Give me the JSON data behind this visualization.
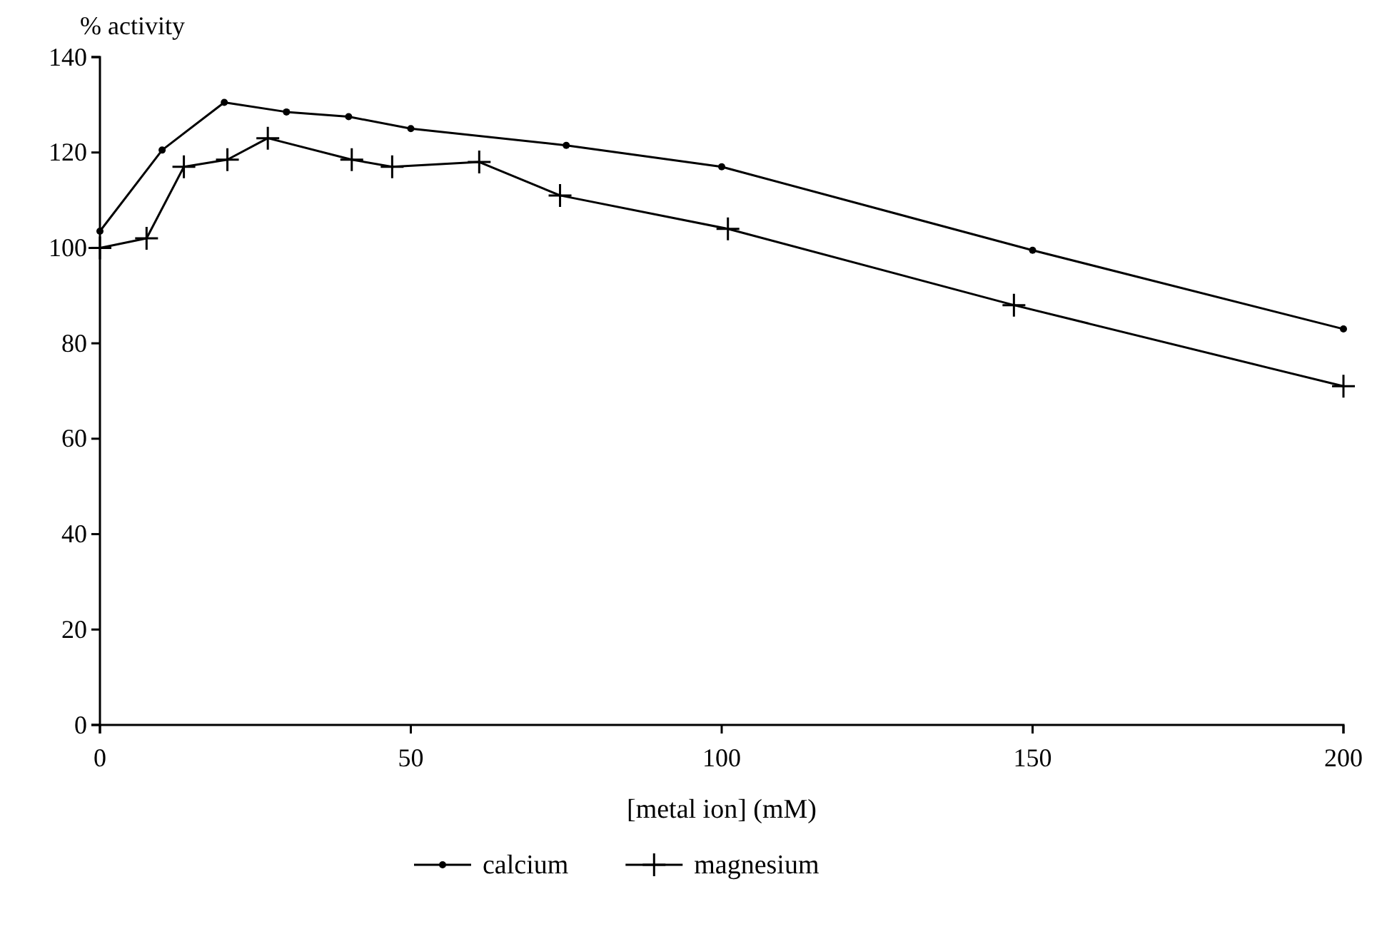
{
  "chart_data": {
    "type": "line",
    "xlabel": "[metal ion] (mM)",
    "ylabel": "% activity",
    "xlim": [
      0,
      200
    ],
    "xticks": [
      0,
      50,
      100,
      150,
      200
    ],
    "ylim": [
      0,
      140
    ],
    "yticks": [
      0,
      20,
      40,
      60,
      80,
      100,
      120,
      140
    ],
    "grid": false,
    "legend": "bottom",
    "line_style": "solid",
    "series": [
      {
        "name": "calcium",
        "color": "#000000",
        "marker": "circle",
        "x": [
          0,
          10,
          20,
          30,
          40,
          50,
          75,
          100,
          150,
          200
        ],
        "values": [
          103.5,
          120.5,
          130.5,
          128.5,
          127.5,
          125,
          121.5,
          117,
          99.5,
          83
        ]
      },
      {
        "name": "magnesium",
        "color": "#000000",
        "marker": "cross",
        "x": [
          0,
          7.5,
          13.5,
          20.5,
          27,
          40.5,
          47,
          61,
          74,
          101,
          147,
          200
        ],
        "values": [
          100,
          102,
          117,
          118.5,
          123,
          118.5,
          117,
          118,
          111,
          104,
          88,
          71
        ]
      }
    ]
  }
}
